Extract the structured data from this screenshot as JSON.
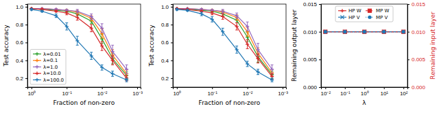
{
  "chart_data": [
    {
      "type": "line",
      "log": "x",
      "x_label": "Fraction of non-zero",
      "y_label": "Test accuracy",
      "legend": "lower left",
      "xlim": [
        1.3,
        0.0008
      ],
      "xticks": [
        {
          "value": 1,
          "label": "10⁰"
        },
        {
          "value": 0.1,
          "label": "10⁻¹"
        },
        {
          "value": 0.01,
          "label": "10⁻²"
        },
        {
          "value": 0.001,
          "label": "10⁻³"
        }
      ],
      "ylim": [
        0.1,
        1.03
      ],
      "yticks": [
        0.2,
        0.4,
        0.6,
        0.8,
        {
          "value": 1,
          "label": "1.0"
        }
      ],
      "x": [
        1,
        0.5,
        0.2,
        0.1,
        0.05,
        0.02,
        0.01,
        0.005,
        0.002
      ],
      "series": [
        {
          "name": "λ=0.01",
          "color": "#2ca02c",
          "marker": "plus",
          "values": [
            0.98,
            0.97,
            0.96,
            0.95,
            0.92,
            0.84,
            0.64,
            0.42,
            0.23
          ],
          "errors": [
            0.005,
            0.005,
            0.01,
            0.01,
            0.02,
            0.03,
            0.05,
            0.06,
            0.04
          ]
        },
        {
          "name": "λ=0.1",
          "color": "#ff7f0e",
          "marker": "plus",
          "values": [
            0.98,
            0.98,
            0.97,
            0.96,
            0.94,
            0.87,
            0.7,
            0.46,
            0.25
          ],
          "errors": [
            0.005,
            0.005,
            0.01,
            0.01,
            0.02,
            0.03,
            0.05,
            0.06,
            0.04
          ]
        },
        {
          "name": "λ=1.0",
          "color": "#9467bd",
          "marker": "plus",
          "values": [
            0.98,
            0.98,
            0.97,
            0.96,
            0.95,
            0.89,
            0.76,
            0.5,
            0.3
          ],
          "errors": [
            0.005,
            0.005,
            0.01,
            0.01,
            0.02,
            0.03,
            0.05,
            0.07,
            0.05
          ]
        },
        {
          "name": "λ=10.0",
          "color": "#d62728",
          "marker": "plus",
          "values": [
            0.98,
            0.97,
            0.95,
            0.93,
            0.88,
            0.76,
            0.56,
            0.4,
            0.2
          ],
          "errors": [
            0.005,
            0.01,
            0.01,
            0.02,
            0.03,
            0.04,
            0.05,
            0.05,
            0.03
          ]
        },
        {
          "name": "λ=100.0",
          "color": "#1f77b4",
          "marker": "plus",
          "values": [
            0.97,
            0.95,
            0.9,
            0.78,
            0.62,
            0.45,
            0.32,
            0.25,
            0.18
          ],
          "errors": [
            0.01,
            0.01,
            0.02,
            0.04,
            0.05,
            0.04,
            0.03,
            0.03,
            0.02
          ]
        }
      ]
    },
    {
      "type": "line",
      "log": "x",
      "x_label": "Fraction of non-zero",
      "y_label": "Test accuracy",
      "xlim": [
        1.3,
        0.0008
      ],
      "xticks": [
        {
          "value": 1,
          "label": "10⁰"
        },
        {
          "value": 0.1,
          "label": "10⁻¹"
        },
        {
          "value": 0.01,
          "label": "10⁻²"
        },
        {
          "value": 0.001,
          "label": "10⁻³"
        }
      ],
      "ylim": [
        0.1,
        1.03
      ],
      "yticks": [
        0.2,
        0.4,
        0.6,
        0.8,
        {
          "value": 1,
          "label": "1.0"
        }
      ],
      "x": [
        1,
        0.5,
        0.2,
        0.1,
        0.05,
        0.02,
        0.01,
        0.005,
        0.002
      ],
      "series": [
        {
          "color": "#2ca02c",
          "marker": "plus",
          "values": [
            0.98,
            0.97,
            0.96,
            0.95,
            0.92,
            0.85,
            0.66,
            0.44,
            0.24
          ],
          "errors": [
            0.005,
            0.005,
            0.01,
            0.01,
            0.02,
            0.03,
            0.05,
            0.06,
            0.04
          ]
        },
        {
          "color": "#ff7f0e",
          "marker": "plus",
          "values": [
            0.98,
            0.98,
            0.97,
            0.96,
            0.94,
            0.88,
            0.72,
            0.48,
            0.26
          ],
          "errors": [
            0.005,
            0.005,
            0.01,
            0.01,
            0.02,
            0.03,
            0.05,
            0.06,
            0.04
          ]
        },
        {
          "color": "#9467bd",
          "marker": "plus",
          "values": [
            0.98,
            0.98,
            0.97,
            0.96,
            0.95,
            0.9,
            0.78,
            0.52,
            0.3
          ],
          "errors": [
            0.005,
            0.005,
            0.01,
            0.01,
            0.02,
            0.03,
            0.05,
            0.07,
            0.05
          ]
        },
        {
          "color": "#d62728",
          "marker": "plus",
          "values": [
            0.98,
            0.97,
            0.95,
            0.93,
            0.89,
            0.78,
            0.58,
            0.42,
            0.22
          ],
          "errors": [
            0.005,
            0.01,
            0.01,
            0.02,
            0.03,
            0.04,
            0.05,
            0.05,
            0.03
          ]
        },
        {
          "color": "#1f77b4",
          "marker": "plus",
          "values": [
            0.97,
            0.96,
            0.92,
            0.86,
            0.72,
            0.52,
            0.36,
            0.27,
            0.18
          ],
          "errors": [
            0.01,
            0.01,
            0.02,
            0.03,
            0.04,
            0.04,
            0.03,
            0.03,
            0.02
          ]
        }
      ]
    },
    {
      "type": "line",
      "log": "x",
      "x_label": "λ",
      "y_label": "Remaining output layer",
      "y2_label": "Remaining input layer",
      "legend": "upper center",
      "xlim": [
        0.006,
        160
      ],
      "xticks": [
        {
          "value": 0.01,
          "label": "10⁻²"
        },
        {
          "value": 0.1,
          "label": "10⁻¹"
        },
        {
          "value": 1,
          "label": "10⁰"
        },
        {
          "value": 10,
          "label": "10¹"
        },
        {
          "value": 100,
          "label": "10²"
        }
      ],
      "ylim": [
        0,
        0.015
      ],
      "yticks": [
        {
          "value": 0,
          "label": "0.000"
        },
        0.005,
        {
          "value": 0.01,
          "label": "0.010"
        },
        0.015
      ],
      "y2lim": [
        0,
        0.015
      ],
      "y2ticks": [
        {
          "value": 0,
          "label": "0.000"
        },
        0.005,
        {
          "value": 0.01,
          "label": "0.010"
        },
        0.015
      ],
      "x": [
        0.01,
        0.1,
        1,
        10,
        100
      ],
      "series": [
        {
          "name": "HP W",
          "color": "#d62728",
          "axis": "y2",
          "marker": "plus",
          "line_style": "solid",
          "values": [
            0.01,
            0.01,
            0.01,
            0.01,
            0.01
          ]
        },
        {
          "name": "HP V",
          "color": "#1f77b4",
          "marker": "x",
          "line_style": "solid",
          "values": [
            0.01,
            0.01,
            0.01,
            0.01,
            0.01
          ]
        },
        {
          "name": "MP W",
          "color": "#d62728",
          "axis": "y2",
          "marker": "square",
          "line_style": "dashed",
          "values": [
            0.01,
            0.01,
            0.01,
            0.01,
            0.01
          ]
        },
        {
          "name": "MP V",
          "color": "#1f77b4",
          "marker": "circle",
          "line_style": "dotted",
          "values": [
            0.01,
            0.01,
            0.01,
            0.01,
            0.01
          ]
        }
      ]
    }
  ]
}
